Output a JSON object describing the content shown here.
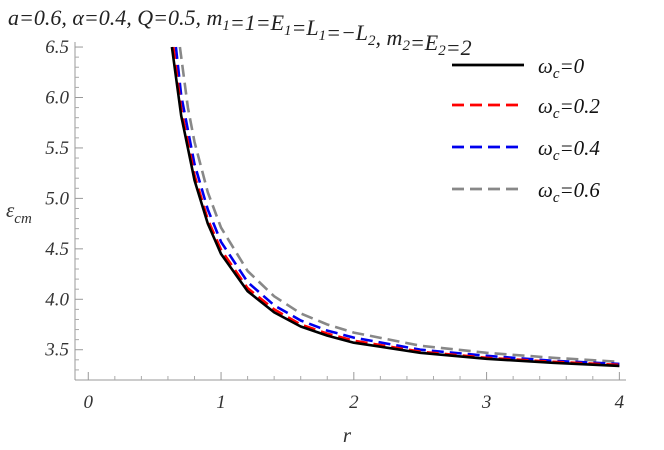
{
  "chart_data": {
    "type": "line",
    "title": "a=0.6, α=0.4, Q=0.5, m₁=1=E₁=L₁=−L₂, m₂=E₂=2",
    "xlabel": "r",
    "ylabel": "εcm",
    "xlim": [
      -0.1,
      4.05
    ],
    "ylim": [
      3.2,
      6.55
    ],
    "xticks": [
      0,
      1,
      2,
      3,
      4
    ],
    "yticks": [
      3.5,
      4.0,
      4.5,
      5.0,
      5.5,
      6.0,
      6.5
    ],
    "xtick_labels": [
      "0",
      "1",
      "2",
      "3",
      "4"
    ],
    "ytick_labels": [
      "3.5",
      "4.0",
      "4.5",
      "5.0",
      "5.5",
      "6.0",
      "6.5"
    ],
    "grid": false,
    "legend_position": "top-right",
    "series": [
      {
        "name": "ωc=0",
        "color": "#000000",
        "dash": "solid",
        "points": [
          [
            0.63,
            6.5
          ],
          [
            0.7,
            5.82
          ],
          [
            0.8,
            5.18
          ],
          [
            0.9,
            4.75
          ],
          [
            1.0,
            4.45
          ],
          [
            1.2,
            4.08
          ],
          [
            1.4,
            3.87
          ],
          [
            1.6,
            3.73
          ],
          [
            1.8,
            3.64
          ],
          [
            2.0,
            3.57
          ],
          [
            2.5,
            3.47
          ],
          [
            3.0,
            3.41
          ],
          [
            3.5,
            3.37
          ],
          [
            4.0,
            3.34
          ]
        ]
      },
      {
        "name": "ωc=0.2",
        "color": "#ff0000",
        "dash": "dashed",
        "points": [
          [
            0.64,
            6.5
          ],
          [
            0.7,
            5.88
          ],
          [
            0.8,
            5.23
          ],
          [
            0.9,
            4.79
          ],
          [
            1.0,
            4.49
          ],
          [
            1.2,
            4.11
          ],
          [
            1.4,
            3.9
          ],
          [
            1.6,
            3.75
          ],
          [
            1.8,
            3.66
          ],
          [
            2.0,
            3.59
          ],
          [
            2.5,
            3.48
          ],
          [
            3.0,
            3.42
          ],
          [
            3.5,
            3.38
          ],
          [
            4.0,
            3.35
          ]
        ]
      },
      {
        "name": "ωc=0.4",
        "color": "#0000ee",
        "dash": "dashed",
        "points": [
          [
            0.66,
            6.5
          ],
          [
            0.7,
            6.02
          ],
          [
            0.8,
            5.34
          ],
          [
            0.9,
            4.89
          ],
          [
            1.0,
            4.57
          ],
          [
            1.2,
            4.17
          ],
          [
            1.4,
            3.94
          ],
          [
            1.6,
            3.79
          ],
          [
            1.8,
            3.69
          ],
          [
            2.0,
            3.62
          ],
          [
            2.5,
            3.5
          ],
          [
            3.0,
            3.44
          ],
          [
            3.5,
            3.39
          ],
          [
            4.0,
            3.36
          ]
        ]
      },
      {
        "name": "ωc=0.6",
        "color": "#888888",
        "dash": "dashed",
        "points": [
          [
            0.69,
            6.5
          ],
          [
            0.75,
            5.9
          ],
          [
            0.8,
            5.56
          ],
          [
            0.9,
            5.06
          ],
          [
            1.0,
            4.71
          ],
          [
            1.2,
            4.28
          ],
          [
            1.4,
            4.03
          ],
          [
            1.6,
            3.86
          ],
          [
            1.8,
            3.75
          ],
          [
            2.0,
            3.67
          ],
          [
            2.5,
            3.54
          ],
          [
            3.0,
            3.47
          ],
          [
            3.5,
            3.42
          ],
          [
            4.0,
            3.38
          ]
        ]
      }
    ]
  }
}
